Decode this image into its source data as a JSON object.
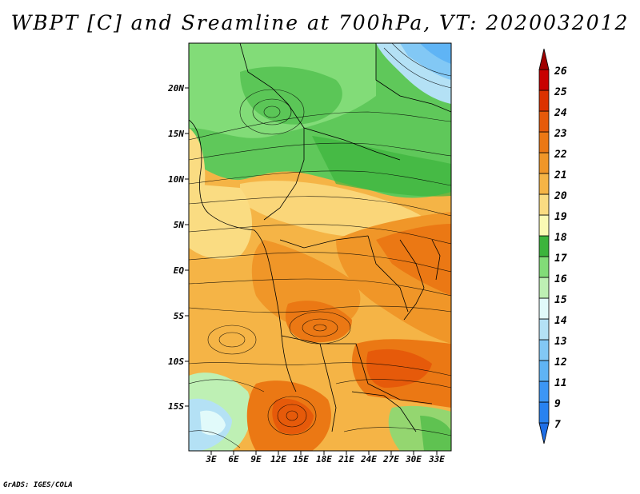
{
  "title": "WBPT [C] and Sreamline at 700hPa, VT: 2020032012",
  "credit": "GrADS: IGES/COLA",
  "map": {
    "lat_labels": [
      "20N",
      "15N",
      "10N",
      "5N",
      "EQ",
      "5S",
      "10S",
      "15S"
    ],
    "lon_labels": [
      "3E",
      "6E",
      "9E",
      "12E",
      "15E",
      "18E",
      "21E",
      "24E",
      "27E",
      "30E",
      "33E"
    ],
    "lat_range": [
      -20,
      25
    ],
    "lon_range": [
      0,
      35
    ]
  },
  "colorbar": {
    "labels": [
      "7",
      "9",
      "11",
      "12",
      "13",
      "14",
      "15",
      "16",
      "17",
      "18",
      "19",
      "20",
      "21",
      "22",
      "23",
      "24",
      "25",
      "26"
    ],
    "colors": [
      "#1e6ee6",
      "#2882f0",
      "#3c96f5",
      "#5fb4f5",
      "#82c8f5",
      "#b4e1f5",
      "#e1fafa",
      "#bef0b4",
      "#82dc78",
      "#3cb43c",
      "#fafab4",
      "#fadc82",
      "#f5b446",
      "#f09628",
      "#eb7814",
      "#e65a0a",
      "#dc3200",
      "#c80000",
      "#a00000"
    ]
  }
}
